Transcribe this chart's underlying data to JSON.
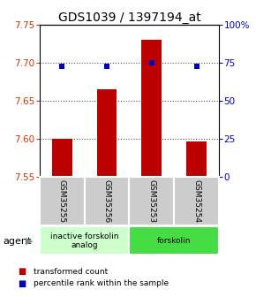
{
  "title": "GDS1039 / 1397194_at",
  "samples": [
    "GSM35255",
    "GSM35256",
    "GSM35253",
    "GSM35254"
  ],
  "bar_values": [
    7.6,
    7.665,
    7.73,
    7.597
  ],
  "bar_base": 7.55,
  "blue_dot_values": [
    7.695,
    7.695,
    7.7,
    7.695
  ],
  "ylim_left": [
    7.55,
    7.75
  ],
  "ylim_right": [
    0,
    100
  ],
  "yticks_left": [
    7.55,
    7.6,
    7.65,
    7.7,
    7.75
  ],
  "yticks_right": [
    0,
    25,
    50,
    75,
    100
  ],
  "ytick_labels_right": [
    "0",
    "25",
    "50",
    "75",
    "100%"
  ],
  "bar_color": "#bb0000",
  "dot_color": "#0000bb",
  "agent_groups": [
    {
      "label": "inactive forskolin\nanalog",
      "indices": [
        0,
        1
      ],
      "color": "#ccffcc"
    },
    {
      "label": "forskolin",
      "indices": [
        2,
        3
      ],
      "color": "#44dd44"
    }
  ],
  "legend_items": [
    {
      "color": "#bb0000",
      "label": "transformed count"
    },
    {
      "color": "#0000bb",
      "label": "percentile rank within the sample"
    }
  ],
  "title_fontsize": 10,
  "axis_label_color_left": "#cc3300",
  "axis_label_color_right": "#0000cc",
  "grid_color": "#555555",
  "sample_box_color": "#cccccc",
  "agent_label": "agent",
  "agent_arrow_color": "#888888"
}
